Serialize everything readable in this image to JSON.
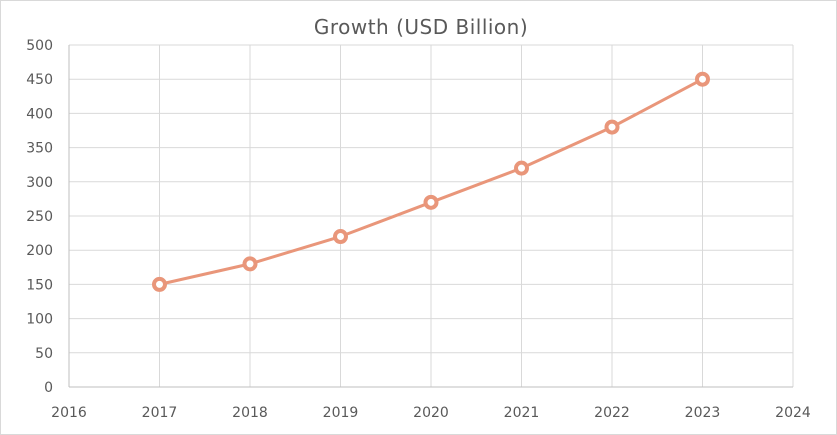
{
  "chart_data": {
    "type": "scatter",
    "title": "Growth (USD Billion)",
    "xlabel": "",
    "ylabel": "",
    "xlim": [
      2016,
      2024
    ],
    "ylim": [
      0,
      500
    ],
    "x_ticks": [
      2016,
      2017,
      2018,
      2019,
      2020,
      2021,
      2022,
      2023,
      2024
    ],
    "y_ticks": [
      0,
      50,
      100,
      150,
      200,
      250,
      300,
      350,
      400,
      450,
      500
    ],
    "grid": true,
    "legend": "none",
    "series": [
      {
        "name": "",
        "color": "#e9967a",
        "x": [
          2017,
          2018,
          2019,
          2020,
          2021,
          2022,
          2023
        ],
        "y": [
          150,
          180,
          220,
          270,
          320,
          380,
          450
        ]
      }
    ]
  }
}
